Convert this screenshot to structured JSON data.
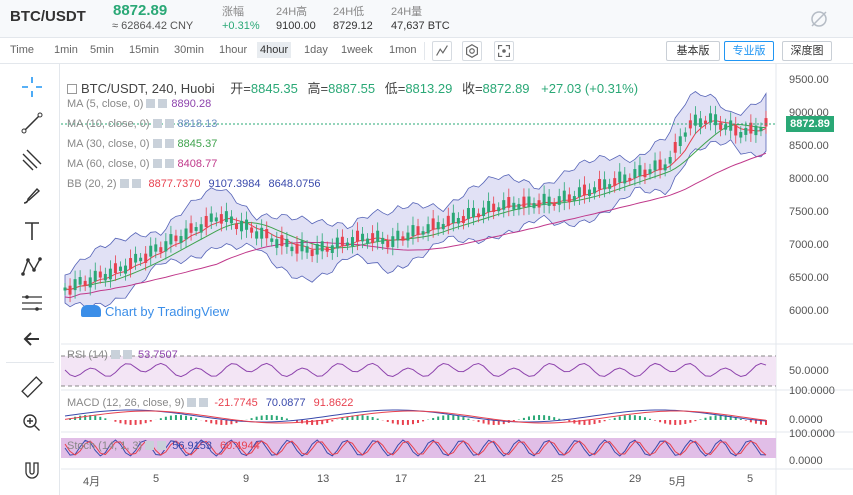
{
  "header": {
    "pair": "BTC/USDT",
    "price": "8872.89",
    "cny": "≈ 62864.42 CNY",
    "stats": [
      {
        "label": "涨幅",
        "value": "+0.31%"
      },
      {
        "label": "24H高",
        "value": "9100.00"
      },
      {
        "label": "24H低",
        "value": "8729.12"
      },
      {
        "label": "24H量",
        "value": "47,637 BTC"
      }
    ]
  },
  "intervals": [
    "Time",
    "1min",
    "5min",
    "15min",
    "30min",
    "1hour",
    "4hour",
    "1day",
    "1week",
    "1mon"
  ],
  "active_interval": "4hour",
  "views": [
    "基本版",
    "专业版",
    "深度图"
  ],
  "active_view": "专业版",
  "chart": {
    "title": "BTC/USDT, 240, Huobi",
    "open_label": "开=",
    "open": "8845.35",
    "high_label": "高=",
    "high": "8887.55",
    "low_label": "低=",
    "low": "8813.29",
    "close_label": "收=",
    "close": "8872.89",
    "change": "+27.03 (+0.31%)",
    "current_price_tag": "8872.89",
    "watermark": "Chart by TradingView",
    "indicators": [
      {
        "name": "MA (5, close, 0)",
        "value": "8890.28",
        "color": "#8e44ad"
      },
      {
        "name": "MA (10, close, 0)",
        "value": "8818.13",
        "color": "#6c8ebf"
      },
      {
        "name": "MA (30, close, 0)",
        "value": "8845.37",
        "color": "#3fa34d"
      },
      {
        "name": "MA (60, close, 0)",
        "value": "8408.77",
        "color": "#c0398b"
      }
    ],
    "bb": {
      "name": "BB (20, 2)",
      "basis": "8877.7370",
      "upper": "9107.3984",
      "lower": "8648.0756"
    },
    "price_axis": [
      "9500.00",
      "9000.00",
      "8500.00",
      "8000.00",
      "7500.00",
      "7000.00",
      "6500.00",
      "6000.00"
    ],
    "rsi": {
      "name": "RSI (14)",
      "value": "53.7507",
      "axis": "50.0000"
    },
    "macd": {
      "name": "MACD (12, 26, close, 9)",
      "v1": "-21.7745",
      "v2": "70.0877",
      "v3": "91.8622",
      "axis_top": "100.0000",
      "axis_zero": "0.0000"
    },
    "stoch": {
      "name": "Stoch (14, 1, 3)",
      "v1": "56.9153",
      "v2": "60.4944",
      "axis_top": "100.0000",
      "axis_zero": "0.0000"
    },
    "time_axis": [
      "4月",
      "5",
      "9",
      "13",
      "17",
      "21",
      "25",
      "29",
      "5月",
      "5"
    ]
  },
  "colors": {
    "up": "#2aa876",
    "down": "#e8414f",
    "bb_fill": "#dcdcf4",
    "bb_line": "#3949ab",
    "rsi_fill": "#f3e5f5",
    "stoch_fill": "#e1bee7"
  }
}
